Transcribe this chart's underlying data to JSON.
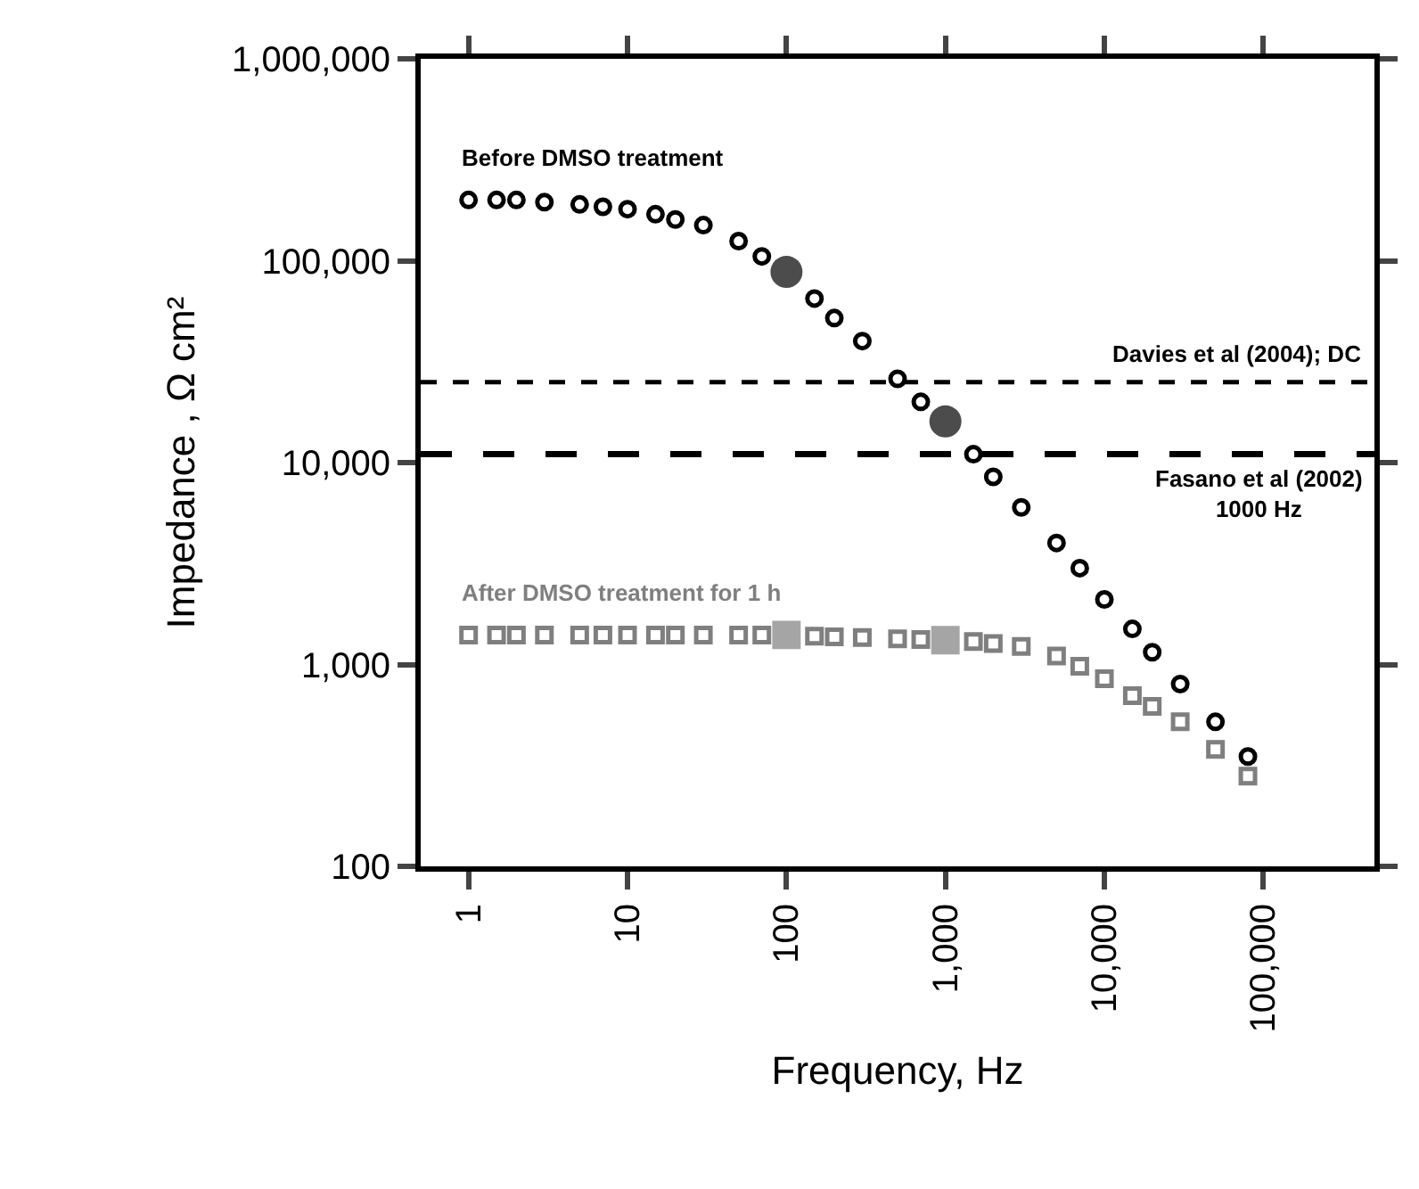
{
  "chart_data": {
    "type": "scatter",
    "xlabel": "Frequency, Hz",
    "ylabel": "Impedance , Ω cm²",
    "log": "xy",
    "legend": false,
    "xlim": [
      0.5,
      500000
    ],
    "ylim": [
      100,
      1000000
    ],
    "xticks": [
      1,
      10,
      100,
      {
        "value": 1000,
        "label": "1,000"
      },
      {
        "value": 10000,
        "label": "10,000"
      },
      {
        "value": 100000,
        "label": "100,000"
      }
    ],
    "yticks": [
      100,
      {
        "value": 1000,
        "label": "1,000"
      },
      {
        "value": 10000,
        "label": "10,000"
      },
      {
        "value": 100000,
        "label": "100,000"
      },
      {
        "value": 1000000,
        "label": "1,000,000"
      }
    ],
    "series": [
      {
        "name": "Before DMSO treatment",
        "color": "#000000",
        "marker": "circle",
        "x": [
          1,
          1.5,
          2,
          3,
          5,
          7,
          10,
          15,
          20,
          30,
          50,
          70,
          150,
          200,
          300,
          500,
          700,
          1500,
          2000,
          3000,
          5000,
          7000,
          10000,
          15000,
          20000,
          30000,
          50000,
          80000
        ],
        "values": [
          200000,
          200000,
          200000,
          195000,
          190000,
          185000,
          180000,
          170000,
          160000,
          150000,
          125000,
          105000,
          65000,
          52000,
          40000,
          26000,
          20000,
          11000,
          8500,
          6000,
          4000,
          3000,
          2100,
          1500,
          1150,
          800,
          520,
          350
        ]
      },
      {
        "type": "bubble",
        "color": "#000000",
        "marker": "circle",
        "x": [
          100,
          1000
        ],
        "values": [
          88000,
          16000
        ],
        "sizes": [
          1,
          1
        ]
      },
      {
        "name": "After DMSO treatment for 1 h",
        "color": "#7f7f7f",
        "marker": "square",
        "x": [
          1,
          1.5,
          2,
          3,
          5,
          7,
          10,
          15,
          20,
          30,
          50,
          70,
          150,
          200,
          300,
          500,
          700,
          1500,
          2000,
          3000,
          5000,
          7000,
          10000,
          15000,
          20000,
          30000,
          50000,
          80000
        ],
        "values": [
          1400,
          1400,
          1400,
          1400,
          1400,
          1400,
          1400,
          1400,
          1400,
          1400,
          1400,
          1400,
          1380,
          1370,
          1360,
          1340,
          1330,
          1300,
          1270,
          1230,
          1100,
          980,
          850,
          700,
          620,
          520,
          380,
          280
        ]
      },
      {
        "type": "bubble",
        "color": "#7f7f7f",
        "marker": "square",
        "x": [
          100,
          1000
        ],
        "values": [
          1400,
          1320
        ],
        "sizes": [
          1,
          1
        ]
      }
    ],
    "ref_lines": [
      {
        "axis": "y",
        "value": 25000,
        "label": "Davies et al (2004); DC",
        "line_style": "dashed",
        "color": "#000000"
      },
      {
        "axis": "y",
        "value": 11000,
        "label": "Fasano et al (2002)\n1000 Hz",
        "line_style": "longdash",
        "color": "#000000"
      }
    ]
  }
}
